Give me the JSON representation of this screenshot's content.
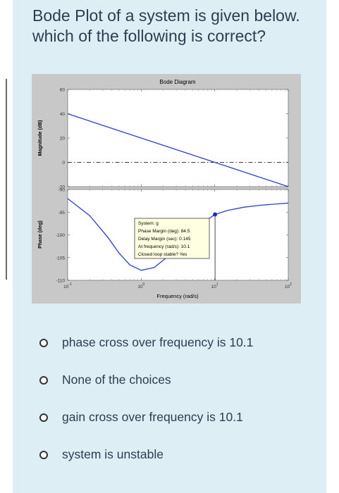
{
  "question": {
    "text": "Bode Plot of a system is given below. which of the following is correct?"
  },
  "chart_data": {
    "type": "line",
    "title": "Bode Diagram",
    "xlabel": "Frequency  (rad/s)",
    "x_scale": "log",
    "xlim": [
      0.1,
      100
    ],
    "x_ticks": [
      "10-1",
      "100",
      "101",
      "102"
    ],
    "x_tick_parts": [
      {
        "base": "10",
        "exp": "-1"
      },
      {
        "base": "10",
        "exp": "0"
      },
      {
        "base": "10",
        "exp": "1"
      },
      {
        "base": "10",
        "exp": "2"
      }
    ],
    "magnitude": {
      "ylabel": "Magnitude (dB)",
      "ylim": [
        -20,
        60
      ],
      "y_ticks": [
        "60",
        "40",
        "20",
        "0",
        "-20"
      ],
      "reference_line": 0,
      "series": [
        {
          "x": [
            0.1,
            1,
            10,
            100
          ],
          "y": [
            40,
            20,
            0,
            -20
          ]
        }
      ]
    },
    "phase": {
      "ylabel": "Phase (deg)",
      "ylim": [
        -110,
        -90
      ],
      "y_ticks": [
        "-90",
        "-95",
        "-100",
        "-105",
        "-110"
      ],
      "series": [
        {
          "x": [
            0.1,
            0.2,
            0.35,
            0.5,
            0.7,
            1,
            1.5,
            2.5,
            4,
            6,
            8,
            10.1,
            15,
            25,
            40,
            70,
            100
          ],
          "y": [
            -92.0,
            -95.8,
            -100.5,
            -104.0,
            -106.6,
            -107.8,
            -107.2,
            -104.3,
            -100.9,
            -98.2,
            -96.6,
            -95.5,
            -94.6,
            -93.9,
            -93.5,
            -93.2,
            -93.0
          ]
        }
      ],
      "marker": {
        "x": 10.1,
        "y": -95.5
      }
    },
    "grid": false,
    "datatip": [
      "System: g",
      "Phase Margin (deg): 84.5",
      "Delay Margin (sec): 0.145",
      "At frequency (rad/s): 10.1",
      "Closed loop stable? Yes"
    ],
    "colors": {
      "line": "#2d3fd1",
      "background": "#c8c8c8",
      "axes": "#ffffff",
      "marker": "#1c2bd8"
    }
  },
  "choices": [
    {
      "label": "phase cross over frequency is 10.1"
    },
    {
      "label": "None of the choices"
    },
    {
      "label": "gain cross over frequency is 10.1"
    },
    {
      "label": "system is unstable"
    }
  ]
}
